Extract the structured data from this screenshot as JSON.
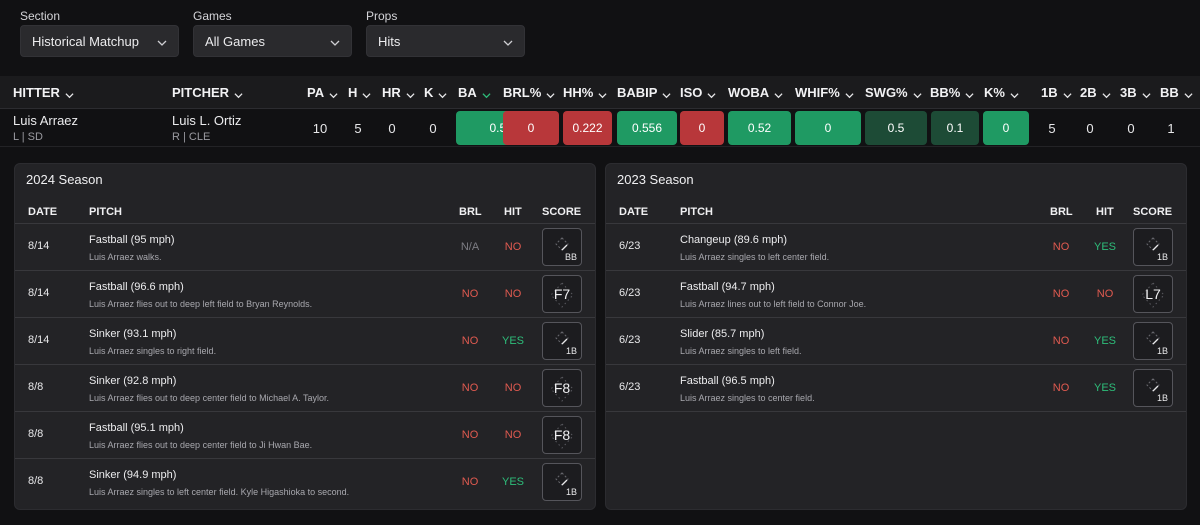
{
  "filters": [
    {
      "label": "Section",
      "value": "Historical Matchup"
    },
    {
      "label": "Games",
      "value": "All Games"
    },
    {
      "label": "Props",
      "value": "Hits"
    }
  ],
  "stats": {
    "headers": {
      "hitter": "HITTER",
      "pitcher": "PITCHER",
      "pa": "PA",
      "h": "H",
      "hr": "HR",
      "k": "K",
      "ba": "BA",
      "brl": "BRL%",
      "hh": "HH%",
      "babip": "BABIP",
      "iso": "ISO",
      "woba": "WOBA",
      "whif": "WHIF%",
      "swg": "SWG%",
      "bb_pct": "BB%",
      "k_pct": "K%",
      "b1": "1B",
      "b2": "2B",
      "b3": "3B",
      "bb": "BB"
    },
    "row": {
      "hitter_name": "Luis Arraez",
      "hitter_sub": "L | SD",
      "pitcher_name": "Luis L. Ortiz",
      "pitcher_sub": "R | CLE",
      "pa": "10",
      "h": "5",
      "hr": "0",
      "k": "0",
      "ba": "0.556",
      "brl": "0",
      "hh": "0.222",
      "babip": "0.556",
      "iso": "0",
      "woba": "0.52",
      "whif": "0",
      "swg": "0.5",
      "bb_pct": "0.1",
      "k_pct": "0",
      "b1": "5",
      "b2": "0",
      "b3": "0",
      "bb": "1"
    },
    "chip_colors": {
      "green": "#1f9a63",
      "red": "#b8373a",
      "dark_green": "#1d4b36"
    }
  },
  "panel_headers": {
    "date": "DATE",
    "pitch": "PITCH",
    "brl": "BRL",
    "hit": "HIT",
    "score": "SCORE"
  },
  "season_2024": {
    "title": "2024 Season",
    "rows": [
      {
        "date": "8/14",
        "pitch": "Fastball (95 mph)",
        "desc": "Luis Arraez walks.",
        "brl": "N/A",
        "hit": "NO",
        "score": "BB"
      },
      {
        "date": "8/14",
        "pitch": "Fastball (96.6 mph)",
        "desc": "Luis Arraez flies out to deep left field to Bryan Reynolds.",
        "brl": "NO",
        "hit": "NO",
        "score": "F7"
      },
      {
        "date": "8/14",
        "pitch": "Sinker (93.1 mph)",
        "desc": "Luis Arraez singles to right field.",
        "brl": "NO",
        "hit": "YES",
        "score": "1B"
      },
      {
        "date": "8/8",
        "pitch": "Sinker (92.8 mph)",
        "desc": "Luis Arraez flies out to deep center field to Michael A. Taylor.",
        "brl": "NO",
        "hit": "NO",
        "score": "F8"
      },
      {
        "date": "8/8",
        "pitch": "Fastball (95.1 mph)",
        "desc": "Luis Arraez flies out to deep center field to Ji Hwan Bae.",
        "brl": "NO",
        "hit": "NO",
        "score": "F8"
      },
      {
        "date": "8/8",
        "pitch": "Sinker (94.9 mph)",
        "desc": "Luis Arraez singles to left center field. Kyle Higashioka to second.",
        "brl": "NO",
        "hit": "YES",
        "score": "1B"
      }
    ]
  },
  "season_2023": {
    "title": "2023 Season",
    "rows": [
      {
        "date": "6/23",
        "pitch": "Changeup (89.6 mph)",
        "desc": "Luis Arraez singles to left center field.",
        "brl": "NO",
        "hit": "YES",
        "score": "1B"
      },
      {
        "date": "6/23",
        "pitch": "Fastball (94.7 mph)",
        "desc": "Luis Arraez lines out to left field to Connor Joe.",
        "brl": "NO",
        "hit": "NO",
        "score": "L7"
      },
      {
        "date": "6/23",
        "pitch": "Slider (85.7 mph)",
        "desc": "Luis Arraez singles to left field.",
        "brl": "NO",
        "hit": "YES",
        "score": "1B"
      },
      {
        "date": "6/23",
        "pitch": "Fastball (96.5 mph)",
        "desc": "Luis Arraez singles to center field.",
        "brl": "NO",
        "hit": "YES",
        "score": "1B"
      }
    ]
  }
}
